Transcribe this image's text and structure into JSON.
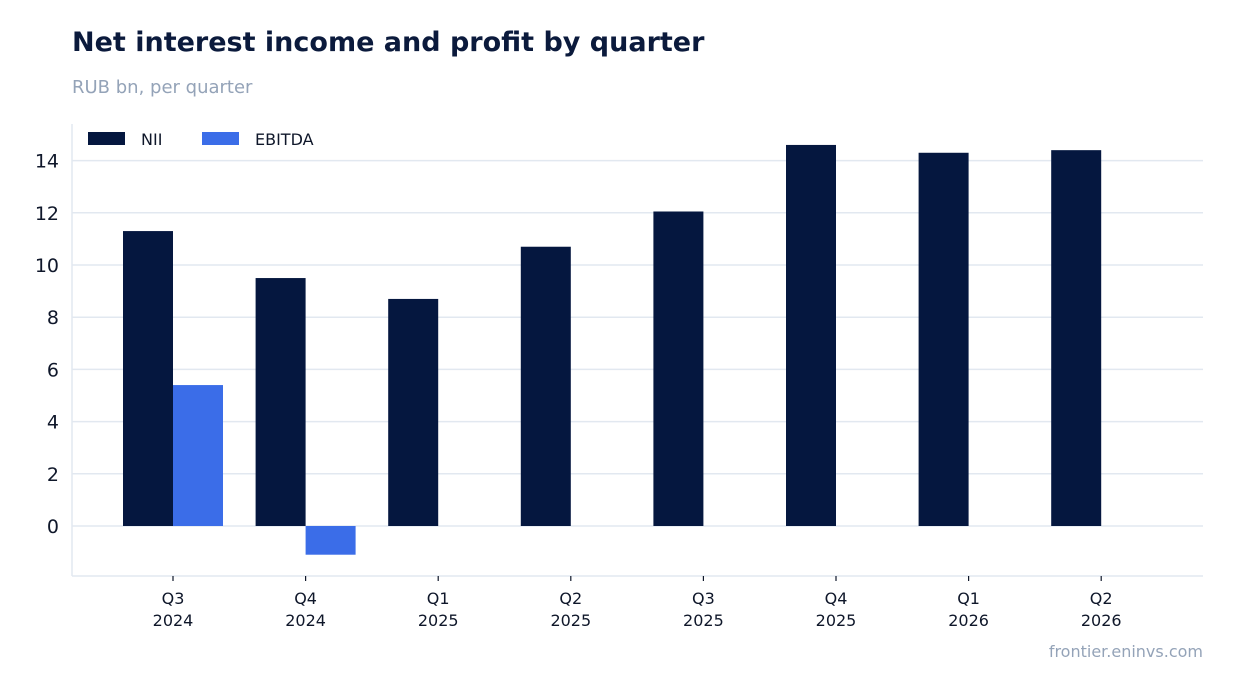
{
  "header": {
    "title": "Net interest income and profit by quarter",
    "subtitle": "RUB bn, per quarter"
  },
  "footer": {
    "source": "frontier.eninvs.com"
  },
  "colors": {
    "nii": "#05173f",
    "ebitda": "#3b6de8",
    "grid": "#e2e8f0",
    "axis_text": "#0f172a",
    "muted": "#94a3b8"
  },
  "chart_data": {
    "type": "bar",
    "categories": [
      [
        "Q3",
        "2024"
      ],
      [
        "Q4",
        "2024"
      ],
      [
        "Q1",
        "2025"
      ],
      [
        "Q2",
        "2025"
      ],
      [
        "Q3",
        "2025"
      ],
      [
        "Q4",
        "2025"
      ],
      [
        "Q1",
        "2026"
      ],
      [
        "Q2",
        "2026"
      ]
    ],
    "series": [
      {
        "name": "NII",
        "values": [
          11.3,
          9.5,
          8.7,
          10.7,
          12.05,
          14.6,
          14.3,
          14.4
        ]
      },
      {
        "name": "EBITDA",
        "values": [
          5.4,
          -1.1,
          null,
          null,
          null,
          null,
          null,
          null
        ]
      }
    ],
    "yticks": [
      0,
      2,
      4,
      6,
      8,
      10,
      12,
      14
    ],
    "ylim": [
      -1.9,
      15.4
    ],
    "grid": true,
    "legend_position": "top-left"
  }
}
